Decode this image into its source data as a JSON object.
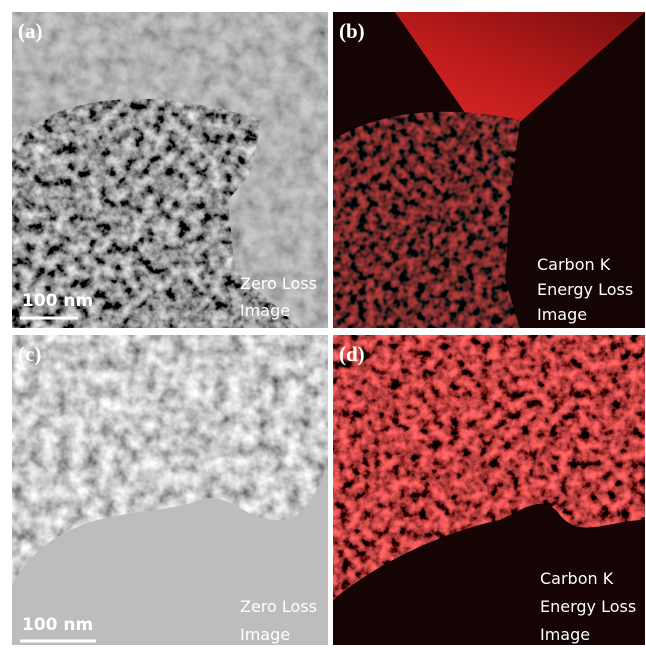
{
  "panels": [
    {
      "label": "(a)",
      "caption": [
        "Zero Loss",
        "Image"
      ],
      "scale_bar": "100 nm"
    },
    {
      "label": "(b)",
      "caption": [
        "Carbon K",
        "Energy Loss",
        "Image"
      ]
    },
    {
      "label": "(c)",
      "caption": [
        "Zero Loss",
        "Image"
      ],
      "scale_bar": "100 nm"
    },
    {
      "label": "(d)",
      "caption": [
        "Carbon K",
        "Energy Loss",
        "Image"
      ]
    }
  ]
}
